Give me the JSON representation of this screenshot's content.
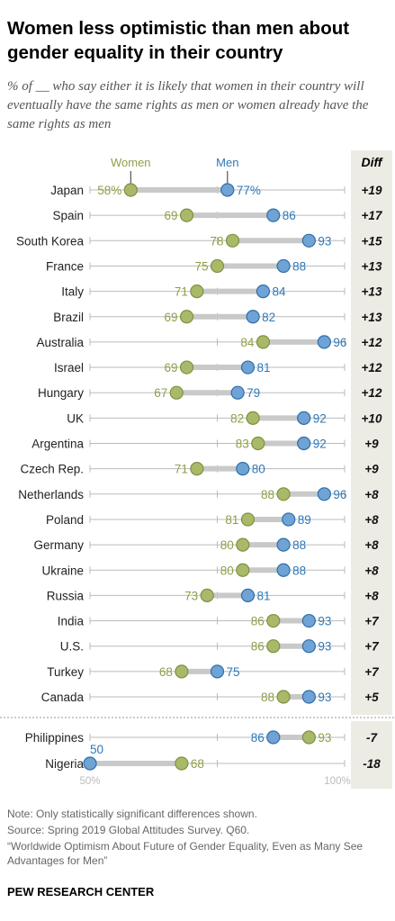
{
  "title": "Women less optimistic than men about gender equality in their country",
  "subtitle": "% of __ who say either it is likely that women in their country will eventually have the same rights as men or women already have the same rights as men",
  "colors": {
    "women": "#a9b96a",
    "men": "#6fa3d6",
    "women_text": "#8da04a",
    "men_text": "#2e79b8",
    "diff_bg": "#edece4"
  },
  "chart_data": {
    "type": "dot",
    "legend": {
      "women": "Women",
      "men": "Men"
    },
    "diff_header": "Diff",
    "xlim": [
      50,
      100
    ],
    "x_tick_labels": [
      "50%",
      "100%"
    ],
    "countries": [
      {
        "name": "Japan",
        "women": 58,
        "men": 77,
        "women_label": "58%",
        "men_label": "77%",
        "diff": "+19"
      },
      {
        "name": "Spain",
        "women": 69,
        "men": 86,
        "women_label": "69",
        "men_label": "86",
        "diff": "+17"
      },
      {
        "name": "South Korea",
        "women": 78,
        "men": 93,
        "women_label": "78",
        "men_label": "93",
        "diff": "+15"
      },
      {
        "name": "France",
        "women": 75,
        "men": 88,
        "women_label": "75",
        "men_label": "88",
        "diff": "+13"
      },
      {
        "name": "Italy",
        "women": 71,
        "men": 84,
        "women_label": "71",
        "men_label": "84",
        "diff": "+13"
      },
      {
        "name": "Brazil",
        "women": 69,
        "men": 82,
        "women_label": "69",
        "men_label": "82",
        "diff": "+13"
      },
      {
        "name": "Australia",
        "women": 84,
        "men": 96,
        "women_label": "84",
        "men_label": "96",
        "diff": "+12"
      },
      {
        "name": "Israel",
        "women": 69,
        "men": 81,
        "women_label": "69",
        "men_label": "81",
        "diff": "+12"
      },
      {
        "name": "Hungary",
        "women": 67,
        "men": 79,
        "women_label": "67",
        "men_label": "79",
        "diff": "+12"
      },
      {
        "name": "UK",
        "women": 82,
        "men": 92,
        "women_label": "82",
        "men_label": "92",
        "diff": "+10"
      },
      {
        "name": "Argentina",
        "women": 83,
        "men": 92,
        "women_label": "83",
        "men_label": "92",
        "diff": "+9"
      },
      {
        "name": "Czech Rep.",
        "women": 71,
        "men": 80,
        "women_label": "71",
        "men_label": "80",
        "diff": "+9"
      },
      {
        "name": "Netherlands",
        "women": 88,
        "men": 96,
        "women_label": "88",
        "men_label": "96",
        "diff": "+8"
      },
      {
        "name": "Poland",
        "women": 81,
        "men": 89,
        "women_label": "81",
        "men_label": "89",
        "diff": "+8"
      },
      {
        "name": "Germany",
        "women": 80,
        "men": 88,
        "women_label": "80",
        "men_label": "88",
        "diff": "+8"
      },
      {
        "name": "Ukraine",
        "women": 80,
        "men": 88,
        "women_label": "80",
        "men_label": "88",
        "diff": "+8"
      },
      {
        "name": "Russia",
        "women": 73,
        "men": 81,
        "women_label": "73",
        "men_label": "81",
        "diff": "+8"
      },
      {
        "name": "India",
        "women": 86,
        "men": 93,
        "women_label": "86",
        "men_label": "93",
        "diff": "+7"
      },
      {
        "name": "U.S.",
        "women": 86,
        "men": 93,
        "women_label": "86",
        "men_label": "93",
        "diff": "+7"
      },
      {
        "name": "Turkey",
        "women": 68,
        "men": 75,
        "women_label": "68",
        "men_label": "75",
        "diff": "+7"
      },
      {
        "name": "Canada",
        "women": 88,
        "men": 93,
        "women_label": "88",
        "men_label": "93",
        "diff": "+5"
      },
      {
        "name": "Philippines",
        "women": 93,
        "men": 86,
        "women_label": "93",
        "men_label": "86",
        "diff": "-7"
      },
      {
        "name": "Nigeria",
        "women": 68,
        "men": 50,
        "women_label": "68",
        "men_label": "50",
        "diff": "-18"
      }
    ]
  },
  "notes": [
    "Note: Only statistically significant differences shown.",
    "Source: Spring 2019 Global Attitudes Survey. Q60.",
    "“Worldwide Optimism About Future of Gender Equality, Even as Many See Advantages for Men”"
  ],
  "brand": "PEW RESEARCH CENTER"
}
